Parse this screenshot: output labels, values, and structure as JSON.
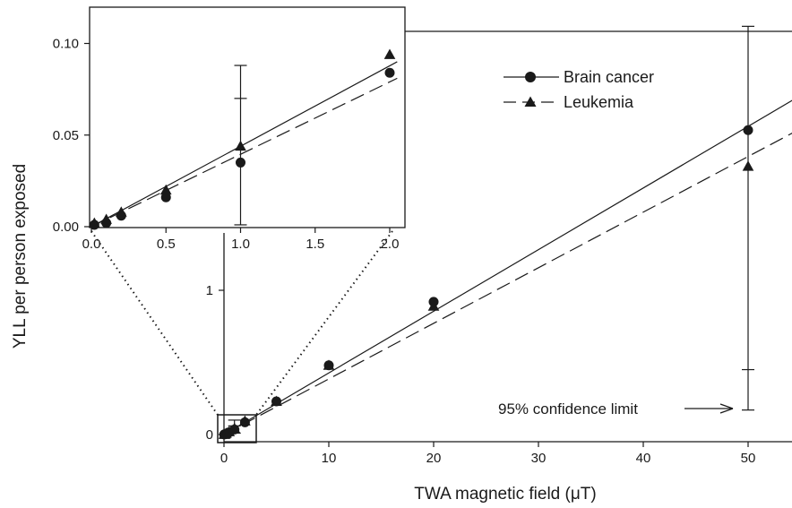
{
  "chart_data": [
    {
      "id": "main",
      "type": "scatter",
      "xlabel": "TWA magnetic field (μT)",
      "ylabel": "YLL per person exposed",
      "xlim": [
        -2,
        55
      ],
      "ylim": [
        -0.05,
        3
      ],
      "x_ticks": [
        "0",
        "10",
        "20",
        "30",
        "40",
        "50"
      ],
      "x_tick_values": [
        0,
        10,
        20,
        30,
        40,
        50
      ],
      "y_ticks": [
        "0",
        "1"
      ],
      "y_tick_values": [
        0,
        1
      ],
      "series": [
        {
          "name": "Brain cancer",
          "marker": "circle",
          "line": "solid",
          "x": [
            0.02,
            0.1,
            0.2,
            0.5,
            1.0,
            2.0,
            5.0,
            10.0,
            20.0,
            50.0
          ],
          "y": [
            0.001,
            0.002,
            0.006,
            0.016,
            0.035,
            0.085,
            0.23,
            0.48,
            0.92,
            2.11
          ],
          "fit": {
            "x": [
              0,
              55
            ],
            "y": [
              0,
              2.35
            ]
          }
        },
        {
          "name": "Leukemia",
          "marker": "triangle",
          "line": "dashed",
          "x": [
            0.02,
            0.1,
            0.2,
            0.5,
            1.0,
            2.0,
            5.0,
            10.0,
            20.0,
            50.0
          ],
          "y": [
            0.001,
            0.003,
            0.008,
            0.02,
            0.044,
            0.094,
            0.23,
            0.48,
            0.89,
            1.86
          ],
          "fit": {
            "x": [
              0,
              55
            ],
            "y": [
              0,
              2.12
            ]
          }
        }
      ],
      "error_bars": [
        {
          "x": 1.0,
          "low": 0.01,
          "high": 0.1,
          "mid_cap": 0.06
        },
        {
          "x": 50.0,
          "low": 0.17,
          "high": 2.83,
          "mid_cap": 0.45
        }
      ],
      "annotation": "95% confidence limit"
    },
    {
      "id": "inset",
      "type": "scatter",
      "xlim": [
        0,
        2.05
      ],
      "ylim": [
        0,
        0.1
      ],
      "x_ticks": [
        "0.0",
        "0.5",
        "1.0",
        "1.5",
        "2.0"
      ],
      "x_tick_values": [
        0,
        0.5,
        1.0,
        1.5,
        2.0
      ],
      "y_ticks": [
        "0.00",
        "0.05",
        "0.10"
      ],
      "y_tick_values": [
        0,
        0.05,
        0.1
      ],
      "series": [
        {
          "name": "Brain cancer",
          "marker": "circle",
          "line": "solid",
          "x": [
            0.02,
            0.1,
            0.2,
            0.5,
            1.0,
            2.0
          ],
          "y": [
            0.001,
            0.002,
            0.006,
            0.016,
            0.035,
            0.084
          ],
          "fit": {
            "x": [
              0,
              2.05
            ],
            "y": [
              0,
              0.09
            ]
          }
        },
        {
          "name": "Leukemia",
          "marker": "triangle",
          "line": "dashed",
          "x": [
            0.02,
            0.1,
            0.2,
            0.5,
            1.0,
            2.0
          ],
          "y": [
            0.002,
            0.004,
            0.008,
            0.02,
            0.044,
            0.094
          ],
          "fit": {
            "x": [
              0,
              2.05
            ],
            "y": [
              0,
              0.081
            ]
          }
        }
      ],
      "error_bars": [
        {
          "x": 1.0,
          "low": 0.001,
          "high": 0.088,
          "mid_cap": 0.07
        }
      ]
    }
  ],
  "legend": {
    "placement": "top-right of inset",
    "items": [
      "Brain cancer",
      "Leukemia"
    ]
  }
}
